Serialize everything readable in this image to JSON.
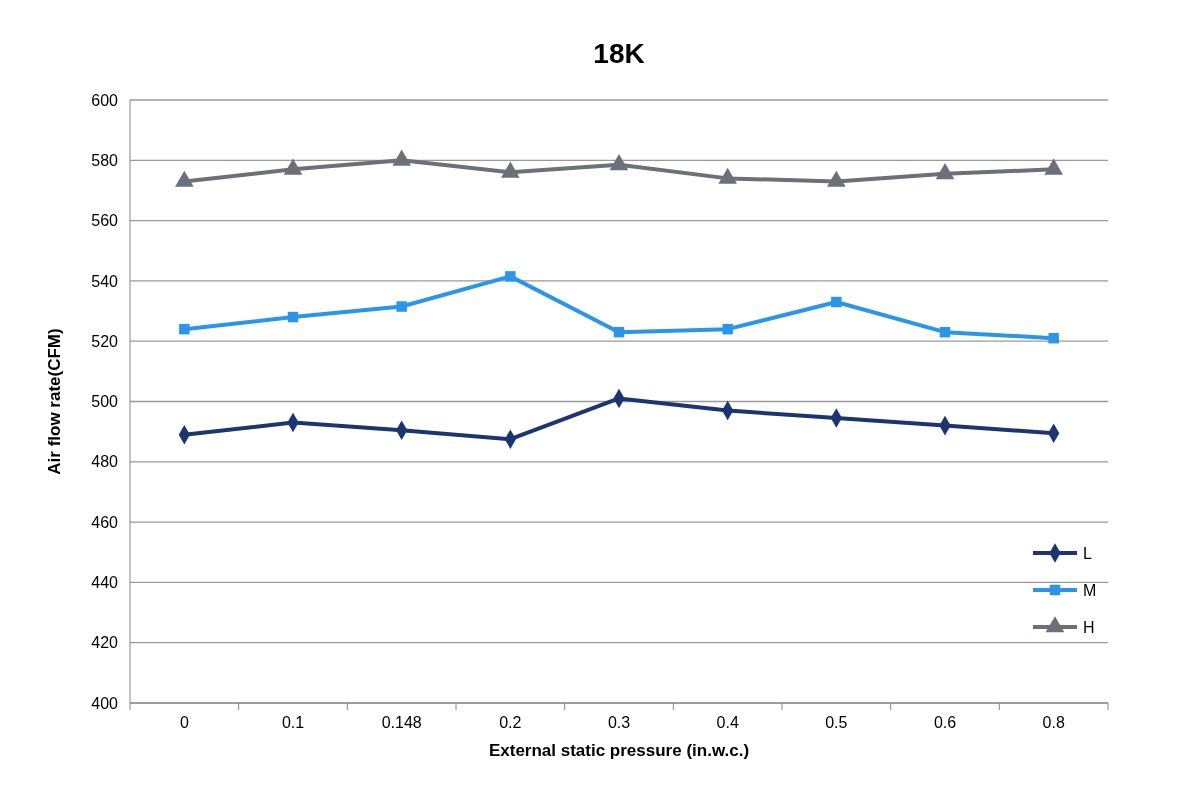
{
  "chart_data": {
    "type": "line",
    "title": "18K",
    "xlabel": "External static pressure (in.w.c.)",
    "ylabel": "Air flow rate(CFM)",
    "categories": [
      "0",
      "0.1",
      "0.148",
      "0.2",
      "0.3",
      "0.4",
      "0.5",
      "0.6",
      "0.8"
    ],
    "series": [
      {
        "name": "L",
        "color": "#1c3570",
        "marker": "diamond",
        "values": [
          489,
          493,
          490.5,
          487.5,
          501,
          497,
          494.5,
          492,
          489.5
        ]
      },
      {
        "name": "M",
        "color": "#2b96e8",
        "marker": "square",
        "values": [
          524,
          528,
          531.5,
          541.5,
          523,
          524,
          533,
          523,
          521
        ]
      },
      {
        "name": "H",
        "color": "#6b7079",
        "marker": "triangle",
        "values": [
          573,
          577,
          580,
          576,
          578.5,
          574,
          573,
          575.5,
          577
        ]
      }
    ],
    "ylim": [
      400,
      600
    ],
    "yticks": [
      400,
      420,
      440,
      460,
      480,
      500,
      520,
      540,
      560,
      580,
      600
    ],
    "grid": "y",
    "legend": "bottom right",
    "line_style": "solid"
  }
}
